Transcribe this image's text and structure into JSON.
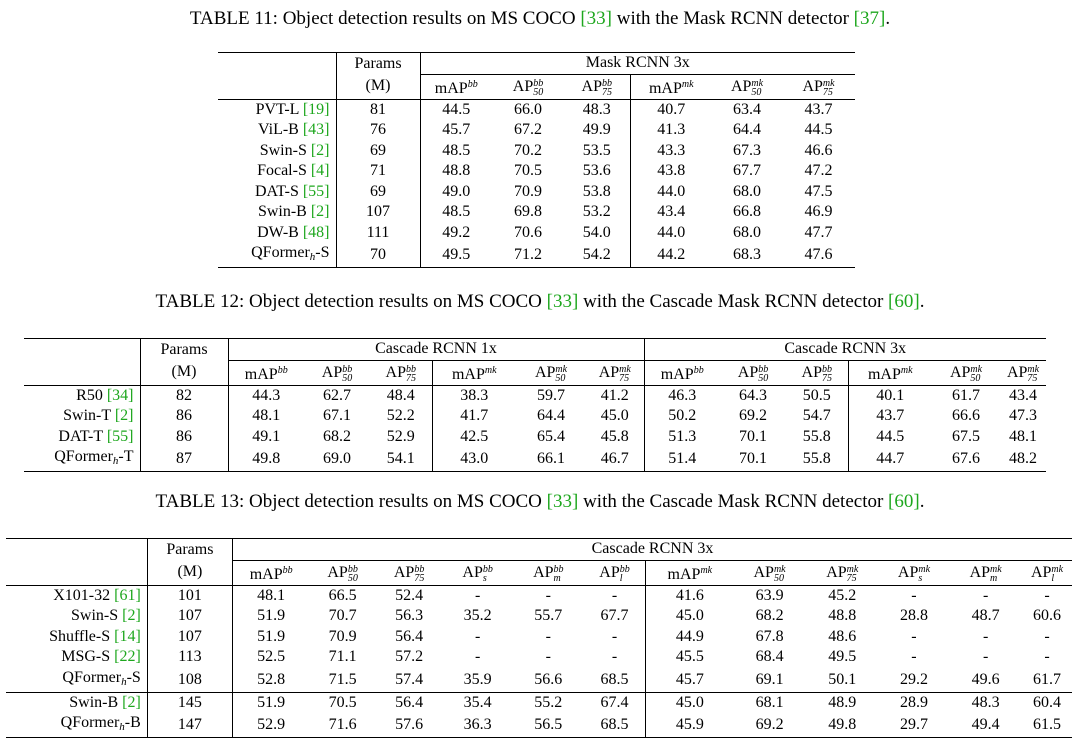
{
  "tables": [
    {
      "number": "TABLE 11:",
      "caption_pre": "Object detection results on MS COCO ",
      "cite1": "[33]",
      "caption_mid": " with the Mask RCNN detector ",
      "cite2": "[37]",
      "caption_post": ".",
      "params_label": "Params",
      "params_unit": "(M)",
      "group_label": "Mask RCNN 3x",
      "rows": [
        {
          "name": "PVT-L",
          "cite": "[19]",
          "params": "81",
          "vals": [
            "44.5",
            "66.0",
            "48.3",
            "40.7",
            "63.4",
            "43.7"
          ]
        },
        {
          "name": "ViL-B",
          "cite": "[43]",
          "params": "76",
          "vals": [
            "45.7",
            "67.2",
            "49.9",
            "41.3",
            "64.4",
            "44.5"
          ]
        },
        {
          "name": "Swin-S",
          "cite": "[2]",
          "params": "69",
          "vals": [
            "48.5",
            "70.2",
            "53.5",
            "43.3",
            "67.3",
            "46.6"
          ]
        },
        {
          "name": "Focal-S",
          "cite": "[4]",
          "params": "71",
          "vals": [
            "48.8",
            "70.5",
            "53.6",
            "43.8",
            "67.7",
            "47.2"
          ]
        },
        {
          "name": "DAT-S",
          "cite": "[55]",
          "params": "69",
          "vals": [
            "49.0",
            "70.9",
            "53.8",
            "44.0",
            "68.0",
            "47.5"
          ]
        },
        {
          "name": "Swin-B",
          "cite": "[2]",
          "params": "107",
          "vals": [
            "48.5",
            "69.8",
            "53.2",
            "43.4",
            "66.8",
            "46.9"
          ]
        },
        {
          "name": "DW-B",
          "cite": "[48]",
          "params": "111",
          "vals": [
            "49.2",
            "70.6",
            "54.0",
            "44.0",
            "68.0",
            "47.7"
          ]
        },
        {
          "name": "QFormer",
          "sub": "h",
          "suffix": "-S",
          "cite": "",
          "params": "70",
          "vals": [
            "49.5",
            "71.2",
            "54.2",
            "44.2",
            "68.3",
            "47.6"
          ]
        }
      ]
    },
    {
      "number": "TABLE 12:",
      "caption_pre": "Object detection results on MS COCO ",
      "cite1": "[33]",
      "caption_mid": " with the Cascade Mask RCNN detector ",
      "cite2": "[60]",
      "caption_post": ".",
      "params_label": "Params",
      "params_unit": "(M)",
      "group1_label": "Cascade RCNN 1x",
      "group2_label": "Cascade RCNN 3x",
      "rows": [
        {
          "name": "R50",
          "cite": "[34]",
          "params": "82",
          "vals": [
            "44.3",
            "62.7",
            "48.4",
            "38.3",
            "59.7",
            "41.2",
            "46.3",
            "64.3",
            "50.5",
            "40.1",
            "61.7",
            "43.4"
          ]
        },
        {
          "name": "Swin-T",
          "cite": "[2]",
          "params": "86",
          "vals": [
            "48.1",
            "67.1",
            "52.2",
            "41.7",
            "64.4",
            "45.0",
            "50.2",
            "69.2",
            "54.7",
            "43.7",
            "66.6",
            "47.3"
          ]
        },
        {
          "name": "DAT-T",
          "cite": "[55]",
          "params": "86",
          "vals": [
            "49.1",
            "68.2",
            "52.9",
            "42.5",
            "65.4",
            "45.8",
            "51.3",
            "70.1",
            "55.8",
            "44.5",
            "67.5",
            "48.1"
          ]
        },
        {
          "name": "QFormer",
          "sub": "h",
          "suffix": "-T",
          "cite": "",
          "params": "87",
          "vals": [
            "49.8",
            "69.0",
            "54.1",
            "43.0",
            "66.1",
            "46.7",
            "51.4",
            "70.1",
            "55.8",
            "44.7",
            "67.6",
            "48.2"
          ]
        }
      ]
    },
    {
      "number": "TABLE 13:",
      "caption_pre": "Object detection results on MS COCO ",
      "cite1": "[33]",
      "caption_mid": " with the Cascade Mask RCNN detector ",
      "cite2": "[60]",
      "caption_post": ".",
      "params_label": "Params",
      "params_unit": "(M)",
      "group_label": "Cascade RCNN 3x",
      "rows": [
        {
          "name": "X101-32",
          "cite": "[61]",
          "params": "101",
          "vals": [
            "48.1",
            "66.5",
            "52.4",
            "-",
            "-",
            "-",
            "41.6",
            "63.9",
            "45.2",
            "-",
            "-",
            "-"
          ]
        },
        {
          "name": "Swin-S",
          "cite": "[2]",
          "params": "107",
          "vals": [
            "51.9",
            "70.7",
            "56.3",
            "35.2",
            "55.7",
            "67.7",
            "45.0",
            "68.2",
            "48.8",
            "28.8",
            "48.7",
            "60.6"
          ]
        },
        {
          "name": "Shuffle-S",
          "cite": "[14]",
          "params": "107",
          "vals": [
            "51.9",
            "70.9",
            "56.4",
            "-",
            "-",
            "-",
            "44.9",
            "67.8",
            "48.6",
            "-",
            "-",
            "-"
          ]
        },
        {
          "name": "MSG-S",
          "cite": "[22]",
          "params": "113",
          "vals": [
            "52.5",
            "71.1",
            "57.2",
            "-",
            "-",
            "-",
            "45.5",
            "68.4",
            "49.5",
            "-",
            "-",
            "-"
          ]
        },
        {
          "name": "QFormer",
          "sub": "h",
          "suffix": "-S",
          "cite": "",
          "params": "108",
          "vals": [
            "52.8",
            "71.5",
            "57.4",
            "35.9",
            "56.6",
            "68.5",
            "45.7",
            "69.1",
            "50.1",
            "29.2",
            "49.6",
            "61.7"
          ]
        },
        {
          "name": "Swin-B",
          "cite": "[2]",
          "params": "145",
          "vals": [
            "51.9",
            "70.5",
            "56.4",
            "35.4",
            "55.2",
            "67.4",
            "45.0",
            "68.1",
            "48.9",
            "28.9",
            "48.3",
            "60.4"
          ]
        },
        {
          "name": "QFormer",
          "sub": "h",
          "suffix": "-B",
          "cite": "",
          "params": "147",
          "vals": [
            "52.9",
            "71.6",
            "57.6",
            "36.3",
            "56.5",
            "68.5",
            "45.9",
            "69.2",
            "49.8",
            "29.7",
            "49.4",
            "61.5"
          ]
        }
      ]
    }
  ],
  "metrics": {
    "map": "mAP",
    "ap": "AP",
    "bb": "bb",
    "mk": "mk",
    "s50": "50",
    "s75": "75",
    "s_s": "s",
    "s_m": "m",
    "s_l": "l"
  },
  "colors": {
    "citation": "#1ea71e"
  }
}
